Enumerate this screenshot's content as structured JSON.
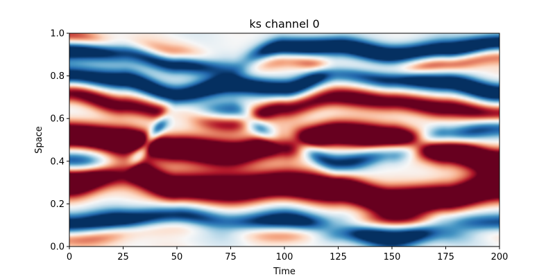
{
  "chart_data": {
    "type": "heatmap",
    "title": "ks channel 0",
    "xlabel": "Time",
    "ylabel": "Space",
    "xlim": [
      0,
      200
    ],
    "ylim": [
      0.0,
      1.0
    ],
    "xticks": [
      "0",
      "25",
      "50",
      "75",
      "100",
      "125",
      "150",
      "175",
      "200"
    ],
    "yticks": [
      "0.0",
      "0.2",
      "0.4",
      "0.6",
      "0.8",
      "1.0"
    ],
    "colormap": "RdBu_r",
    "colormap_colors": [
      "#053061",
      "#2166ac",
      "#4393c3",
      "#92c5de",
      "#d1e5f0",
      "#f7f7f7",
      "#fddbc7",
      "#f4a582",
      "#d6604d",
      "#b2182b",
      "#67001f"
    ],
    "grid": false,
    "features": [
      {
        "kind": "positive",
        "t": [
          0,
          25,
          50,
          75,
          100,
          125,
          150,
          175,
          200
        ],
        "s": [
          0.52,
          0.5,
          0.46,
          0.44,
          0.48,
          0.53,
          0.51,
          0.45,
          0.4
        ],
        "amp": 1.7,
        "width": 0.045
      },
      {
        "kind": "positive",
        "t": [
          0,
          25,
          50,
          75,
          100,
          125,
          150,
          175,
          200
        ],
        "s": [
          0.3,
          0.36,
          0.28,
          0.27,
          0.29,
          0.27,
          0.21,
          0.23,
          0.28
        ],
        "amp": 1.7,
        "width": 0.05
      },
      {
        "kind": "positive",
        "t": [
          0,
          25,
          50,
          75,
          100,
          125,
          150,
          175,
          200
        ],
        "s": [
          0.72,
          0.66,
          0.62,
          0.58,
          0.65,
          0.7,
          0.68,
          0.65,
          0.62
        ],
        "amp": 1.1,
        "width": 0.035
      },
      {
        "kind": "positive",
        "t": [
          0,
          25,
          50,
          75,
          100,
          125,
          150,
          175,
          200
        ],
        "s": [
          0.98,
          0.94,
          0.9,
          0.86,
          0.88,
          0.84,
          0.82,
          0.86,
          0.9
        ],
        "amp": 0.8,
        "width": 0.03
      },
      {
        "kind": "positive",
        "t": [
          0,
          50,
          100,
          150,
          200
        ],
        "s": [
          0.04,
          0.1,
          0.06,
          0.12,
          0.07
        ],
        "amp": 0.7,
        "width": 0.03
      },
      {
        "kind": "negative",
        "t": [
          0,
          25,
          50,
          75,
          100,
          125,
          150,
          175,
          200
        ],
        "s": [
          0.92,
          0.92,
          0.86,
          0.85,
          0.93,
          0.94,
          0.9,
          0.92,
          0.95
        ],
        "amp": 1.4,
        "width": 0.035
      },
      {
        "kind": "negative",
        "t": [
          0,
          25,
          50,
          75,
          100,
          125,
          150,
          175,
          200
        ],
        "s": [
          0.8,
          0.78,
          0.71,
          0.76,
          0.74,
          0.82,
          0.79,
          0.77,
          0.72
        ],
        "amp": 1.3,
        "width": 0.035
      },
      {
        "kind": "negative",
        "t": [
          0,
          25,
          50,
          75,
          100,
          125,
          150,
          175,
          200
        ],
        "s": [
          0.1,
          0.12,
          0.14,
          0.1,
          0.12,
          0.08,
          0.04,
          0.09,
          0.1
        ],
        "amp": 1.3,
        "width": 0.04
      },
      {
        "kind": "negative",
        "t": [
          0,
          25,
          50,
          75,
          100,
          125,
          150,
          175,
          200
        ],
        "s": [
          0.4,
          0.38,
          0.62,
          0.63,
          0.5,
          0.39,
          0.44,
          0.52,
          0.56
        ],
        "amp": 1.0,
        "width": 0.035
      }
    ]
  }
}
